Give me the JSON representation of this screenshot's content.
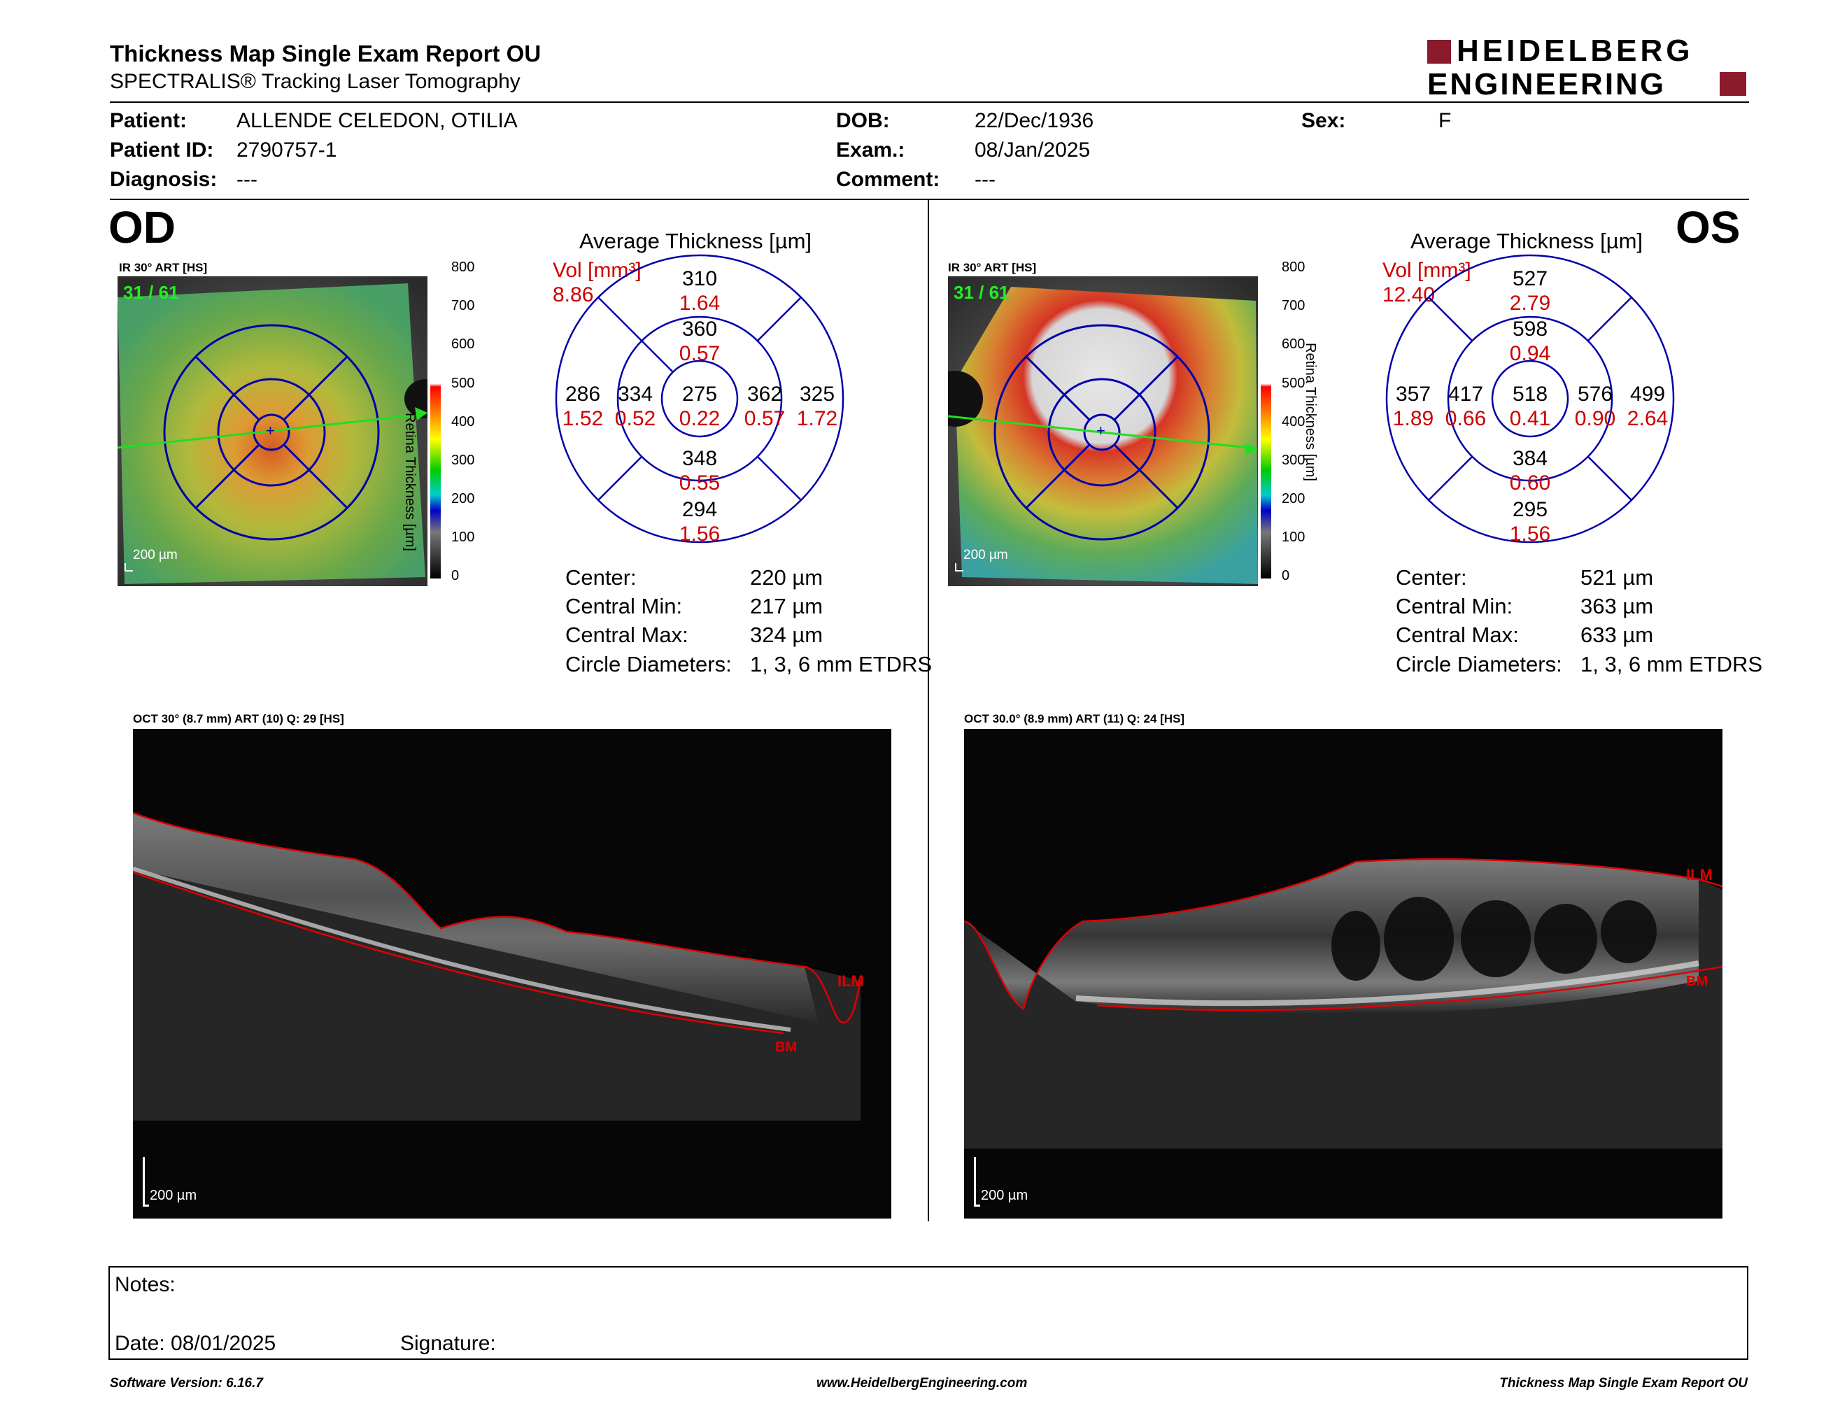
{
  "header": {
    "title": "Thickness Map Single Exam Report OU",
    "subtitle": "SPECTRALIS® Tracking Laser Tomography",
    "logo_line1": "HEIDELBERG",
    "logo_line2": "ENGINEERING"
  },
  "patient": {
    "patient_label": "Patient:",
    "patient_value": "ALLENDE CELEDON, OTILIA",
    "id_label": "Patient ID:",
    "id_value": "2790757-1",
    "diagnosis_label": "Diagnosis:",
    "diagnosis_value": "---",
    "dob_label": "DOB:",
    "dob_value": "22/Dec/1936",
    "exam_label": "Exam.:",
    "exam_value": "08/Jan/2025",
    "comment_label": "Comment:",
    "comment_value": "---",
    "sex_label": "Sex:",
    "sex_value": "F"
  },
  "od": {
    "eye": "OD",
    "ir_label": "IR 30° ART [HS]",
    "art_count": "31 / 61",
    "scale": "200 µm",
    "avg_title": "Average Thickness [µm]",
    "vol_label": "Vol [mm³]",
    "vol_value": "8.86",
    "etdrs": {
      "center": {
        "t": "275",
        "v": "0.22"
      },
      "inner_sup": {
        "t": "360",
        "v": "0.57"
      },
      "inner_inf": {
        "t": "348",
        "v": "0.55"
      },
      "inner_left": {
        "t": "334",
        "v": "0.52"
      },
      "inner_right": {
        "t": "362",
        "v": "0.57"
      },
      "outer_sup": {
        "t": "310",
        "v": "1.64"
      },
      "outer_inf": {
        "t": "294",
        "v": "1.56"
      },
      "outer_left": {
        "t": "286",
        "v": "1.52"
      },
      "outer_right": {
        "t": "325",
        "v": "1.72"
      }
    },
    "stats": {
      "center_label": "Center:",
      "center_value": "220 µm",
      "min_label": "Central Min:",
      "min_value": "217 µm",
      "max_label": "Central Max:",
      "max_value": "324 µm",
      "circ_label": "Circle Diameters:",
      "circ_value": "1, 3, 6 mm ETDRS"
    },
    "oct_label": "OCT 30° (8.7 mm) ART (10) Q: 29 [HS]",
    "oct_scale": "200 µm",
    "ilm": "ILM",
    "bm": "BM"
  },
  "os": {
    "eye": "OS",
    "ir_label": "IR 30° ART [HS]",
    "art_count": "31 / 61",
    "scale": "200 µm",
    "avg_title": "Average Thickness [µm]",
    "vol_label": "Vol [mm³]",
    "vol_value": "12.40",
    "etdrs": {
      "center": {
        "t": "518",
        "v": "0.41"
      },
      "inner_sup": {
        "t": "598",
        "v": "0.94"
      },
      "inner_inf": {
        "t": "384",
        "v": "0.60"
      },
      "inner_left": {
        "t": "417",
        "v": "0.66"
      },
      "inner_right": {
        "t": "576",
        "v": "0.90"
      },
      "outer_sup": {
        "t": "527",
        "v": "2.79"
      },
      "outer_inf": {
        "t": "295",
        "v": "1.56"
      },
      "outer_left": {
        "t": "357",
        "v": "1.89"
      },
      "outer_right": {
        "t": "499",
        "v": "2.64"
      }
    },
    "stats": {
      "center_label": "Center:",
      "center_value": "521 µm",
      "min_label": "Central Min:",
      "min_value": "363 µm",
      "max_label": "Central Max:",
      "max_value": "633 µm",
      "circ_label": "Circle Diameters:",
      "circ_value": "1, 3, 6 mm ETDRS"
    },
    "oct_label": "OCT 30.0° (8.9 mm) ART (11) Q: 24 [HS]",
    "oct_scale": "200 µm",
    "ilm": "ILM",
    "bm": "BM"
  },
  "colorbar": {
    "ticks": [
      "800",
      "700",
      "600",
      "500",
      "400",
      "300",
      "200",
      "100",
      "0"
    ],
    "title": "Retina Thickness [µm]"
  },
  "notes": {
    "notes_label": "Notes:",
    "date_label": "Date: 08/01/2025",
    "signature_label": "Signature:"
  },
  "footer": {
    "left": "Software Version: 6.16.7",
    "center": "www.HeidelbergEngineering.com",
    "right": "Thickness Map Single Exam Report OU"
  },
  "colors": {
    "brand": "#8b1a2b",
    "etdrs_grid": "#0000aa",
    "volume_red": "#cc0000",
    "scan_line": "#22dd22"
  }
}
